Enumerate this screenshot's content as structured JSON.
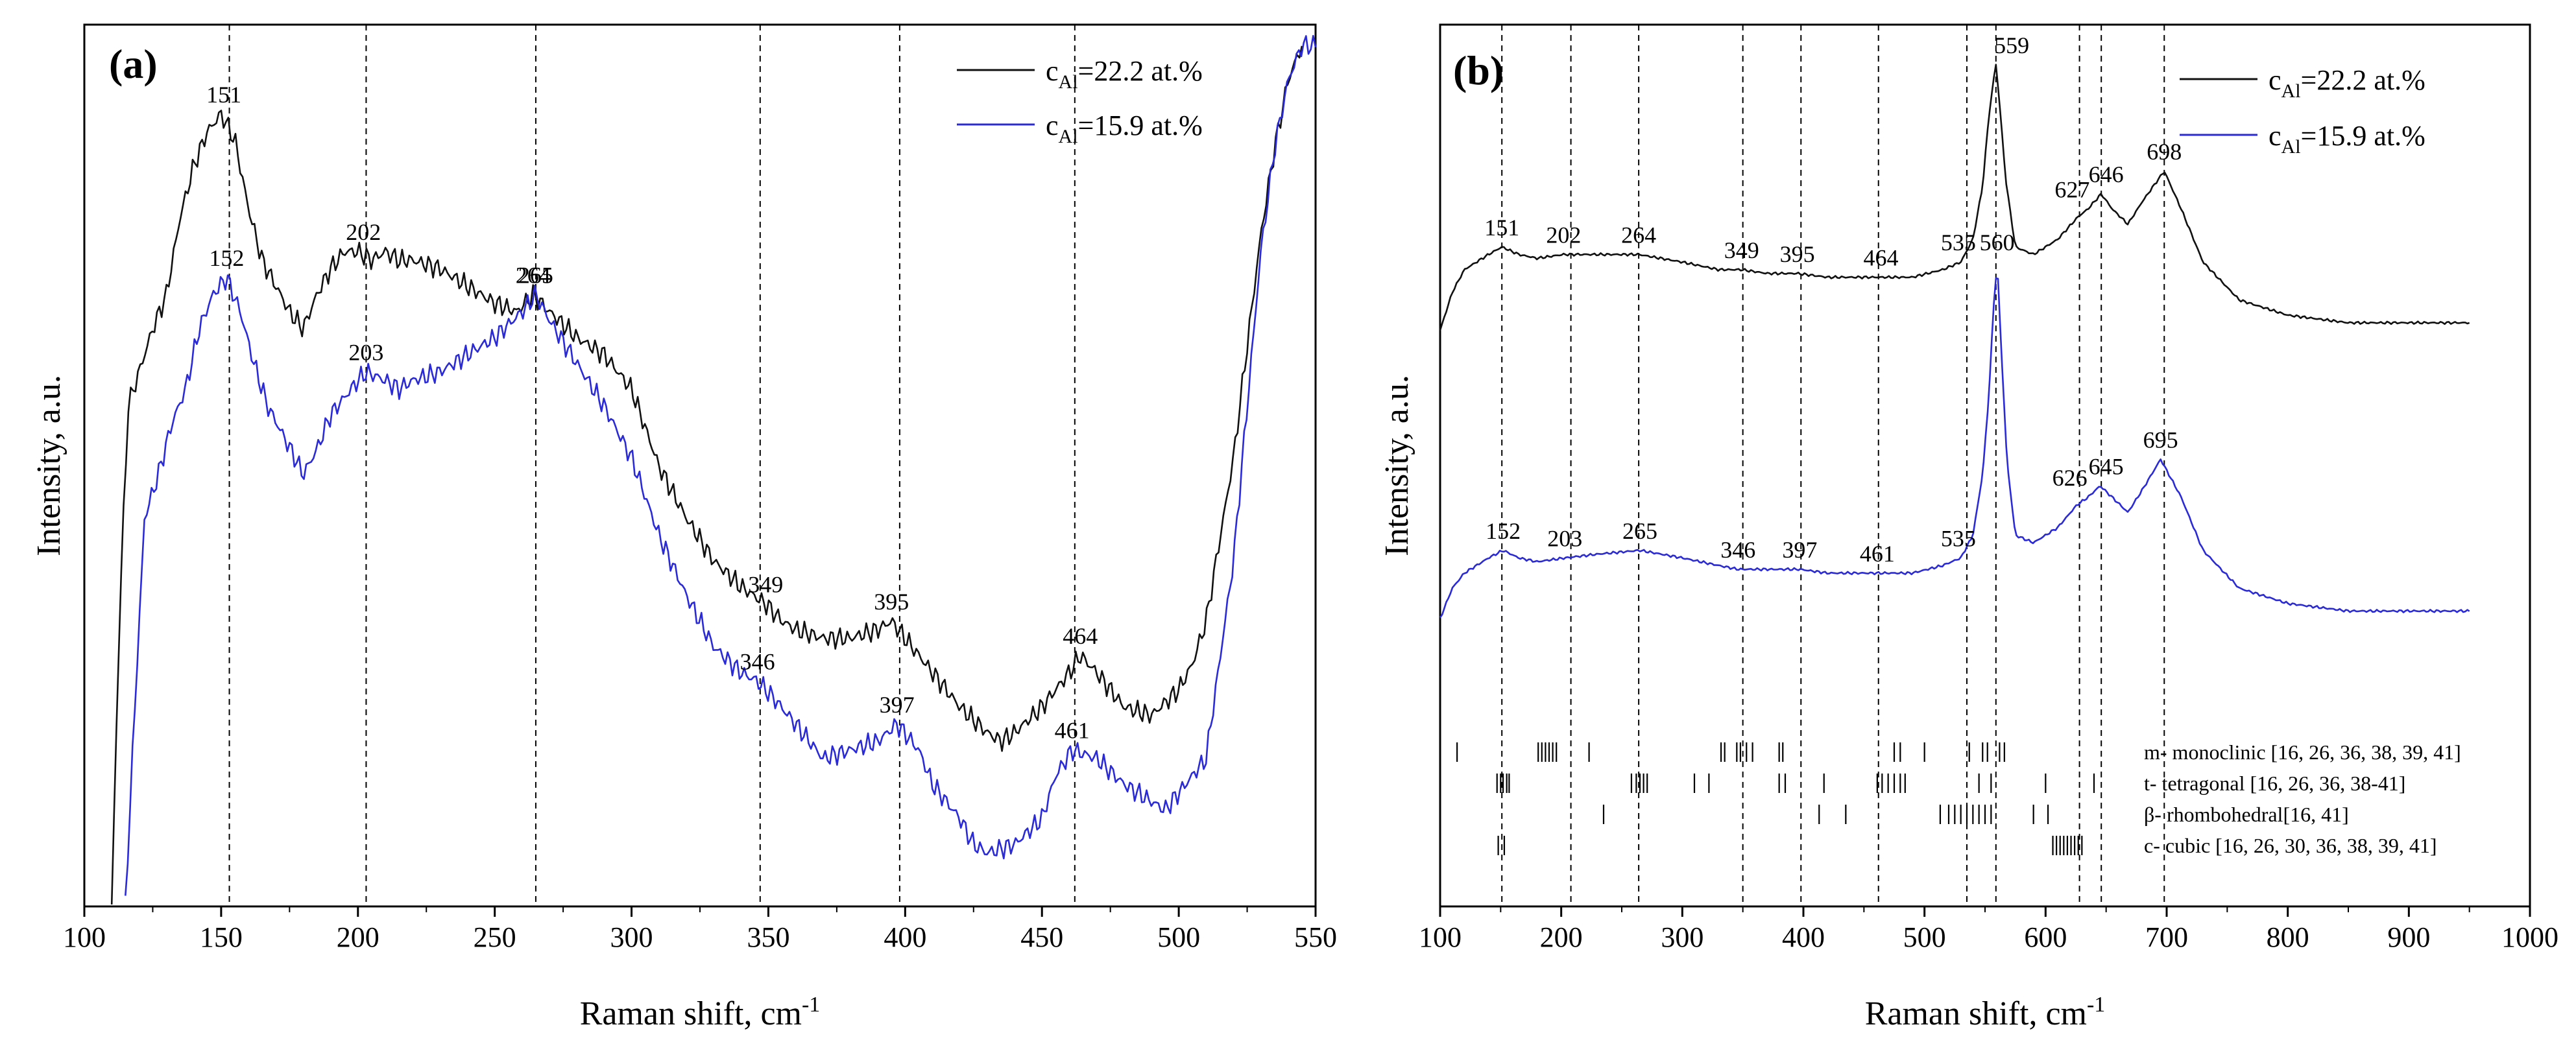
{
  "colors": {
    "series_black": "#111111",
    "series_blue": "#2a2ad8",
    "axis": "#000000",
    "guide": "#000000"
  },
  "chart_data": [
    {
      "type": "line",
      "panel_label": "(a)",
      "xlabel": "Raman shift, cm",
      "xlabel_sup": "-1",
      "ylabel": "Intensity, a.u.",
      "xlim": [
        100,
        550
      ],
      "ylim": [
        0,
        100
      ],
      "xticks": [
        100,
        150,
        200,
        250,
        300,
        350,
        400,
        450,
        500,
        550
      ],
      "grid": false,
      "legend_position": "top-right",
      "guide_lines_x": [
        153,
        203,
        265,
        347,
        398,
        462
      ],
      "series": [
        {
          "name": "c_Al=22.2 at.%",
          "legend_main": "c",
          "legend_sub": "Al",
          "legend_rest": "=22.2 at.%",
          "color_key": "series_black",
          "x": [
            110,
            113,
            116,
            120,
            125,
            130,
            135,
            140,
            145,
            150,
            155,
            160,
            165,
            170,
            175,
            180,
            185,
            190,
            195,
            200,
            205,
            210,
            215,
            220,
            230,
            240,
            250,
            258,
            264,
            270,
            280,
            290,
            300,
            310,
            320,
            330,
            340,
            349,
            355,
            360,
            370,
            380,
            390,
            395,
            400,
            410,
            420,
            430,
            435,
            440,
            450,
            460,
            464,
            470,
            480,
            490,
            500,
            505,
            510,
            520,
            530,
            535,
            540,
            545
          ],
          "values": [
            0,
            35,
            58,
            62,
            67,
            71,
            80,
            86,
            90,
            92,
            89,
            81,
            75,
            72,
            69,
            67,
            71,
            74,
            76,
            76,
            75,
            76,
            75,
            75,
            74,
            72,
            70,
            69,
            71,
            69,
            66,
            64,
            60,
            51,
            45,
            40,
            37,
            35,
            33,
            32,
            31,
            31,
            32,
            33,
            31,
            27,
            23,
            20,
            19,
            20,
            23,
            27,
            29,
            27,
            23,
            22,
            25,
            28,
            33,
            52,
            78,
            88,
            96,
            100
          ]
        },
        {
          "name": "c_Al=15.9 at.%",
          "legend_main": "c",
          "legend_sub": "Al",
          "legend_rest": "=15.9 at.%",
          "color_key": "series_blue",
          "x": [
            115,
            118,
            122,
            127,
            132,
            137,
            142,
            147,
            152,
            157,
            162,
            167,
            172,
            177,
            180,
            185,
            190,
            195,
            200,
            203,
            210,
            215,
            220,
            230,
            240,
            250,
            260,
            265,
            270,
            280,
            290,
            300,
            310,
            320,
            330,
            340,
            346,
            352,
            360,
            370,
            380,
            390,
            397,
            405,
            410,
            420,
            425,
            430,
            440,
            450,
            455,
            461,
            470,
            480,
            490,
            495,
            500,
            510,
            520,
            530,
            535,
            540,
            545,
            550
          ],
          "values": [
            0,
            20,
            45,
            50,
            56,
            60,
            67,
            71,
            73,
            69,
            63,
            58,
            55,
            52,
            50,
            53,
            57,
            59,
            61,
            62,
            61,
            60,
            61,
            62,
            64,
            66,
            69,
            71,
            68,
            63,
            58,
            52,
            43,
            36,
            30,
            27,
            26,
            24,
            21,
            17,
            18,
            19,
            21,
            18,
            14,
            10,
            7,
            6,
            7,
            10,
            15,
            18,
            17,
            14,
            12,
            11,
            13,
            17,
            40,
            76,
            88,
            96,
            100,
            100
          ]
        }
      ],
      "peak_labels": [
        {
          "text": "151",
          "x": 151,
          "y": 92,
          "series": 0
        },
        {
          "text": "202",
          "x": 202,
          "y": 76,
          "series": 0
        },
        {
          "text": "264",
          "x": 264,
          "y": 71,
          "series": 0
        },
        {
          "text": "349",
          "x": 349,
          "y": 35,
          "series": 0
        },
        {
          "text": "395",
          "x": 395,
          "y": 33,
          "series": 0
        },
        {
          "text": "464",
          "x": 464,
          "y": 29,
          "series": 0
        },
        {
          "text": "152",
          "x": 152,
          "y": 73,
          "series": 1
        },
        {
          "text": "203",
          "x": 203,
          "y": 62,
          "series": 1
        },
        {
          "text": "265",
          "x": 265,
          "y": 71,
          "series": 1
        },
        {
          "text": "346",
          "x": 346,
          "y": 26,
          "series": 1
        },
        {
          "text": "397",
          "x": 397,
          "y": 21,
          "series": 1
        },
        {
          "text": "461",
          "x": 461,
          "y": 18,
          "series": 1
        }
      ]
    },
    {
      "type": "line",
      "panel_label": "(b)",
      "xlabel": "Raman shift, cm",
      "xlabel_sup": "-1",
      "ylabel": "Intensity, a.u.",
      "xlim": [
        100,
        1000
      ],
      "ylim": [
        0,
        100
      ],
      "xticks": [
        100,
        200,
        300,
        400,
        500,
        600,
        700,
        800,
        900,
        1000
      ],
      "grid": false,
      "legend_position": "top-right",
      "guide_lines_x": [
        151,
        208,
        264,
        350,
        398,
        462,
        535,
        559,
        628,
        646,
        698
      ],
      "series": [
        {
          "name": "c_Al=22.2 at.%",
          "legend_main": "c",
          "legend_sub": "Al",
          "legend_rest": "=22.2 at.%",
          "color_key": "series_black",
          "x": [
            100,
            110,
            120,
            130,
            140,
            151,
            165,
            180,
            202,
            230,
            264,
            300,
            330,
            349,
            370,
            395,
            420,
            445,
            464,
            490,
            515,
            530,
            540,
            548,
            553,
            557,
            559,
            562,
            567,
            575,
            590,
            610,
            627,
            635,
            646,
            655,
            668,
            680,
            698,
            712,
            730,
            760,
            800,
            850,
            900,
            950
          ],
          "values": [
            65,
            70,
            73,
            74,
            75,
            76,
            75,
            74.5,
            75,
            75,
            75,
            74,
            73,
            73,
            72.5,
            72.5,
            72,
            72,
            72,
            72,
            73,
            74,
            77,
            84,
            93,
            98,
            100,
            95,
            85,
            76,
            75,
            77,
            80,
            81,
            83,
            81,
            79,
            82,
            86,
            81,
            74,
            69,
            67,
            66,
            66,
            66
          ]
        },
        {
          "name": "c_Al=15.9 at.%",
          "legend_main": "c",
          "legend_sub": "Al",
          "legend_rest": "=15.9 at.%",
          "color_key": "series_blue",
          "x": [
            100,
            110,
            120,
            130,
            140,
            152,
            165,
            180,
            203,
            230,
            265,
            300,
            330,
            346,
            370,
            397,
            420,
            445,
            461,
            490,
            515,
            530,
            540,
            548,
            553,
            557,
            560,
            563,
            568,
            575,
            590,
            610,
            626,
            635,
            645,
            655,
            668,
            680,
            695,
            712,
            730,
            760,
            800,
            850,
            900,
            950
          ],
          "values": [
            27,
            31,
            33,
            34,
            35,
            36,
            35,
            34.5,
            35,
            35.5,
            36,
            35,
            34,
            33.5,
            33.5,
            33.5,
            33,
            33,
            33,
            33,
            34,
            35,
            38,
            46,
            56,
            68,
            74,
            64,
            48,
            38,
            37,
            39,
            42,
            43,
            44.5,
            43,
            41,
            44,
            48,
            43,
            36,
            31,
            29,
            28,
            28,
            28
          ]
        }
      ],
      "peak_labels": [
        {
          "text": "151",
          "x": 151,
          "y": 76,
          "series": 0
        },
        {
          "text": "202",
          "x": 202,
          "y": 75,
          "series": 0
        },
        {
          "text": "264",
          "x": 264,
          "y": 75,
          "series": 0
        },
        {
          "text": "349",
          "x": 349,
          "y": 73,
          "series": 0
        },
        {
          "text": "395",
          "x": 395,
          "y": 72.5,
          "series": 0
        },
        {
          "text": "464",
          "x": 464,
          "y": 72,
          "series": 0
        },
        {
          "text": "535",
          "x": 528,
          "y": 74,
          "series": 0
        },
        {
          "text": "559",
          "x": 572,
          "y": 100,
          "series": 0
        },
        {
          "text": "627",
          "x": 622,
          "y": 81,
          "series": 0
        },
        {
          "text": "646",
          "x": 650,
          "y": 83,
          "series": 0
        },
        {
          "text": "698",
          "x": 698,
          "y": 86,
          "series": 0
        },
        {
          "text": "152",
          "x": 152,
          "y": 36,
          "series": 1
        },
        {
          "text": "203",
          "x": 203,
          "y": 35,
          "series": 1
        },
        {
          "text": "265",
          "x": 265,
          "y": 36,
          "series": 1
        },
        {
          "text": "346",
          "x": 346,
          "y": 33.5,
          "series": 1
        },
        {
          "text": "397",
          "x": 397,
          "y": 33.5,
          "series": 1
        },
        {
          "text": "461",
          "x": 461,
          "y": 33,
          "series": 1
        },
        {
          "text": "535",
          "x": 528,
          "y": 35,
          "series": 1
        },
        {
          "text": "560",
          "x": 560,
          "y": 74,
          "series": 1
        },
        {
          "text": "626",
          "x": 620,
          "y": 43,
          "series": 1
        },
        {
          "text": "645",
          "x": 650,
          "y": 44.5,
          "series": 1
        },
        {
          "text": "695",
          "x": 695,
          "y": 48,
          "series": 1
        }
      ],
      "reference_rows": [
        {
          "label": "m- monoclinic [16, 26, 36, 38, 39, 41]",
          "ticks": [
            114,
            181,
            184,
            187,
            190,
            193,
            196,
            223,
            332,
            335,
            345,
            348,
            353,
            358,
            380,
            383,
            475,
            480,
            500,
            537,
            548,
            552,
            562,
            566
          ]
        },
        {
          "label": "t- tetragonal [16, 26, 36, 38-41]",
          "ticks": [
            147,
            150,
            152,
            155,
            157,
            258,
            262,
            265,
            268,
            271,
            310,
            322,
            380,
            385,
            417,
            461,
            465,
            470,
            475,
            480,
            484,
            545,
            555,
            600,
            640
          ]
        },
        {
          "label": "β- rhombohedral[16, 41]",
          "ticks": [
            235,
            413,
            435,
            513,
            520,
            525,
            530,
            535,
            540,
            545,
            550,
            555,
            590,
            602
          ]
        },
        {
          "label": "c- cubic [16, 26, 30, 36, 38, 39, 41]",
          "ticks": [
            148,
            153,
            606,
            609,
            612,
            615,
            618,
            621,
            624,
            627,
            630
          ]
        }
      ]
    }
  ]
}
